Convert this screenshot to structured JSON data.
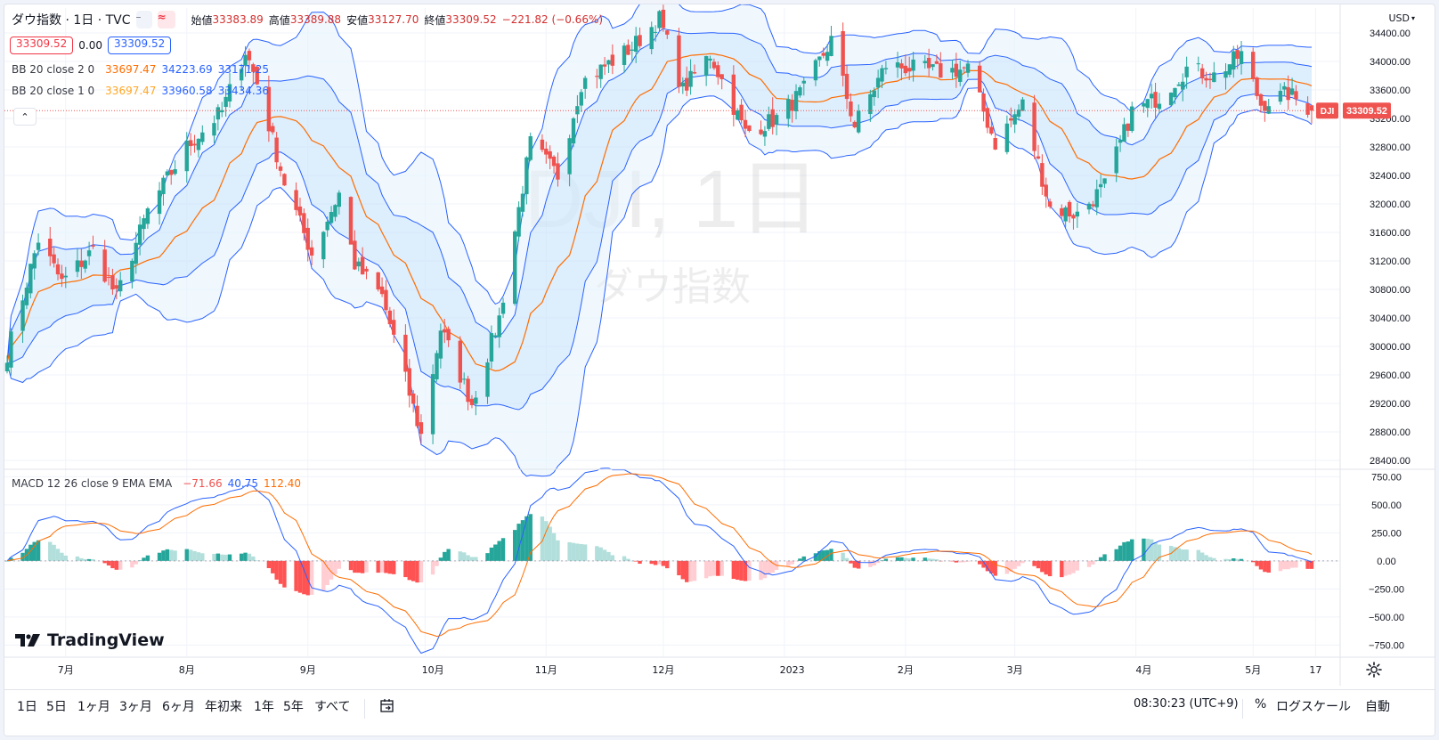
{
  "header": {
    "symbol_title": "ダウ指数 · 1日 · TVC",
    "ohlc": {
      "open_label": "始値",
      "open": "33383.89",
      "high_label": "高値",
      "high": "33389.88",
      "low_label": "安値",
      "low": "33127.70",
      "close_label": "終値",
      "close": "33309.52",
      "change": "−221.82 (−0.66%)"
    },
    "bid": "33309.52",
    "spread": "0.00",
    "ask": "33309.52",
    "currency": "USD"
  },
  "indicators": {
    "bb2": {
      "name": "BB 20 close 2 0",
      "basis": "33697.47",
      "upper": "34223.69",
      "lower": "33171.25"
    },
    "bb1": {
      "name": "BB 20 close 1 0",
      "basis": "33697.47",
      "upper": "33960.58",
      "lower": "33434.36"
    },
    "macd": {
      "name": "MACD 12 26 close 9 EMA EMA",
      "hist": "−71.66",
      "macd": "40.75",
      "signal": "112.40"
    }
  },
  "watermark": {
    "ticker": "DJI, 1日",
    "name": "ダウ指数"
  },
  "last_price": {
    "symbol": "DJI",
    "value": "33309.52"
  },
  "price_axis": [
    "34400.00",
    "34000.00",
    "33600.00",
    "33200.00",
    "32800.00",
    "32400.00",
    "32000.00",
    "31600.00",
    "31200.00",
    "30800.00",
    "30400.00",
    "30000.00",
    "29600.00",
    "29200.00",
    "28800.00",
    "28400.00"
  ],
  "macd_axis": [
    "750.00",
    "500.00",
    "250.00",
    "0.00",
    "−250.00",
    "−500.00",
    "−750.00"
  ],
  "time_axis": [
    "7月",
    "8月",
    "9月",
    "10月",
    "11月",
    "12月",
    "2023",
    "2月",
    "3月",
    "4月",
    "5月",
    "17"
  ],
  "logo": "TradingView",
  "toolbar": {
    "ranges": [
      "1日",
      "5日",
      "1ヶ月",
      "3ヶ月",
      "6ヶ月",
      "年初来",
      "1年",
      "5年",
      "すべて"
    ],
    "clock": "08:30:23 (UTC+9)",
    "percent": "%",
    "log_scale": "ログスケール",
    "auto": "自動"
  },
  "colors": {
    "up": "#26a69a",
    "down": "#ef5350",
    "bb": "#2962ff",
    "basis": "#ff6d00",
    "band_fill": "#e3f2fd",
    "macd": "#2962ff",
    "signal": "#ff6d00"
  },
  "chart_data": {
    "type": "candlestick",
    "x_range": [
      "2022-06-16",
      "2023-05-16"
    ],
    "price_range": [
      28300,
      34750
    ],
    "macd_range": [
      -850,
      800
    ],
    "anchors": [
      {
        "date": "2022-06-16",
        "c": 29900
      },
      {
        "date": "2022-06-24",
        "c": 31500
      },
      {
        "date": "2022-06-30",
        "c": 30900
      },
      {
        "date": "2022-07-08",
        "c": 31350
      },
      {
        "date": "2022-07-14",
        "c": 30700
      },
      {
        "date": "2022-07-22",
        "c": 31900
      },
      {
        "date": "2022-08-01",
        "c": 32800
      },
      {
        "date": "2022-08-10",
        "c": 33300
      },
      {
        "date": "2022-08-16",
        "c": 34150
      },
      {
        "date": "2022-08-19",
        "c": 33700
      },
      {
        "date": "2022-08-26",
        "c": 32300
      },
      {
        "date": "2022-09-02",
        "c": 31300
      },
      {
        "date": "2022-09-09",
        "c": 32150
      },
      {
        "date": "2022-09-13",
        "c": 31150
      },
      {
        "date": "2022-09-20",
        "c": 30700
      },
      {
        "date": "2022-09-30",
        "c": 28750
      },
      {
        "date": "2022-10-05",
        "c": 30250
      },
      {
        "date": "2022-10-13",
        "c": 29200
      },
      {
        "date": "2022-10-20",
        "c": 30400
      },
      {
        "date": "2022-10-28",
        "c": 32850
      },
      {
        "date": "2022-11-04",
        "c": 32400
      },
      {
        "date": "2022-11-10",
        "c": 33700
      },
      {
        "date": "2022-11-23",
        "c": 34200
      },
      {
        "date": "2022-11-30",
        "c": 34600
      },
      {
        "date": "2022-12-06",
        "c": 33600
      },
      {
        "date": "2022-12-13",
        "c": 34100
      },
      {
        "date": "2022-12-22",
        "c": 33000
      },
      {
        "date": "2022-12-30",
        "c": 33200
      },
      {
        "date": "2023-01-06",
        "c": 33600
      },
      {
        "date": "2023-01-13",
        "c": 34300
      },
      {
        "date": "2023-01-19",
        "c": 33100
      },
      {
        "date": "2023-01-27",
        "c": 33950
      },
      {
        "date": "2023-02-03",
        "c": 33900
      },
      {
        "date": "2023-02-10",
        "c": 33850
      },
      {
        "date": "2023-02-17",
        "c": 33900
      },
      {
        "date": "2023-02-24",
        "c": 32850
      },
      {
        "date": "2023-03-03",
        "c": 33400
      },
      {
        "date": "2023-03-10",
        "c": 31950
      },
      {
        "date": "2023-03-17",
        "c": 31850
      },
      {
        "date": "2023-03-24",
        "c": 32250
      },
      {
        "date": "2023-03-31",
        "c": 33300
      },
      {
        "date": "2023-04-07",
        "c": 33500
      },
      {
        "date": "2023-04-14",
        "c": 33900
      },
      {
        "date": "2023-04-21",
        "c": 33800
      },
      {
        "date": "2023-04-28",
        "c": 34100
      },
      {
        "date": "2023-05-03",
        "c": 33400
      },
      {
        "date": "2023-05-10",
        "c": 33550
      },
      {
        "date": "2023-05-16",
        "c": 33309.52
      }
    ],
    "last": {
      "o": 33383.89,
      "h": 33389.88,
      "l": 33127.7,
      "c": 33309.52
    },
    "bollinger": [
      {
        "period": 20,
        "mult": 2
      },
      {
        "period": 20,
        "mult": 1
      }
    ],
    "macd_params": {
      "fast": 12,
      "slow": 26,
      "signal": 9
    }
  }
}
